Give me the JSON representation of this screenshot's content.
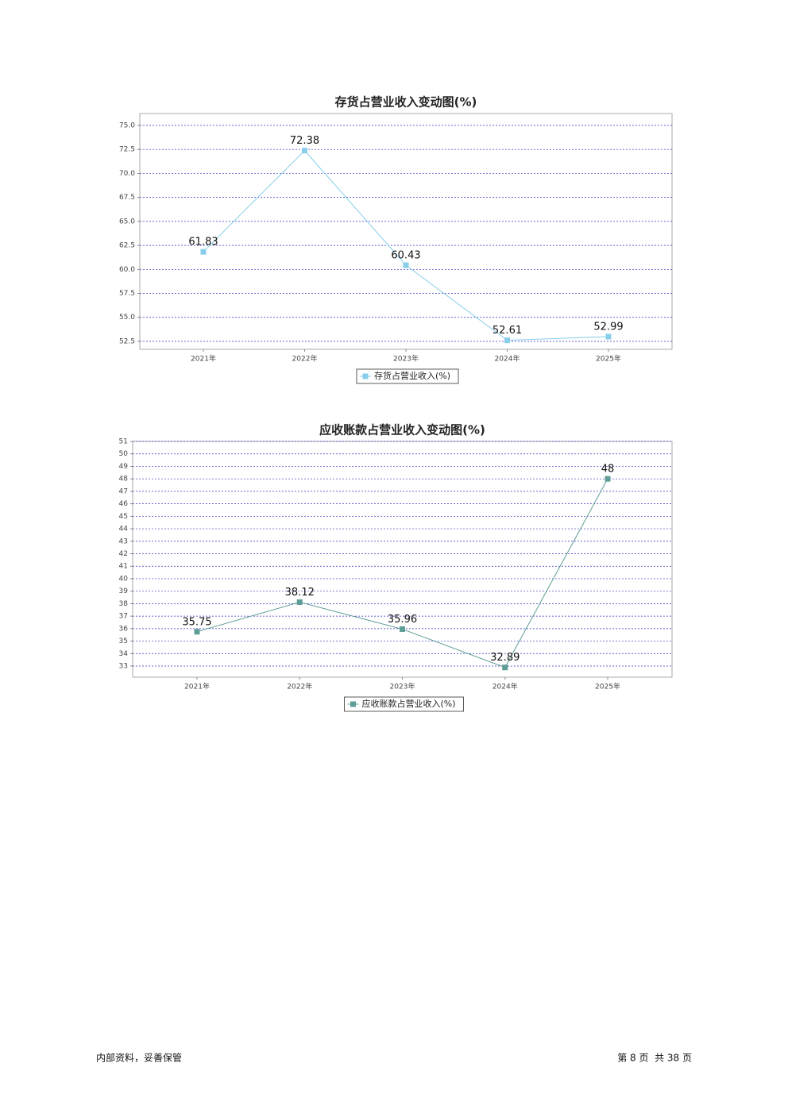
{
  "chart_data": [
    {
      "type": "line",
      "title": "存货占营业收入变动图(%)",
      "categories": [
        "2021年",
        "2022年",
        "2023年",
        "2024年",
        "2025年"
      ],
      "series": [
        {
          "name": "存货占营业收入(%)",
          "color": "#87ceeb",
          "values": [
            61.83,
            72.38,
            60.43,
            52.61,
            52.99
          ]
        }
      ],
      "ylim": [
        51.67,
        76.24
      ],
      "yticks": [
        {
          "value": 52.5,
          "label": "52.5"
        },
        {
          "value": 55,
          "label": "55.0"
        },
        {
          "value": 57.5,
          "label": "57.5"
        },
        {
          "value": 60,
          "label": "60.0"
        },
        {
          "value": 62.5,
          "label": "62.5"
        },
        {
          "value": 65,
          "label": "65.0"
        },
        {
          "value": 67.5,
          "label": "67.5"
        },
        {
          "value": 70,
          "label": "70.0"
        },
        {
          "value": 72.5,
          "label": "72.5"
        },
        {
          "value": 75,
          "label": "75.0"
        }
      ],
      "grid": true
    },
    {
      "type": "line",
      "title": "应收账款占营业收入变动图(%)",
      "categories": [
        "2021年",
        "2022年",
        "2023年",
        "2024年",
        "2025年"
      ],
      "series": [
        {
          "name": "应收账款占营业收入(%)",
          "color": "#5f9e96",
          "values": [
            35.75,
            38.12,
            35.96,
            32.89,
            48
          ]
        }
      ],
      "ylim": [
        32.11,
        51
      ],
      "yticks": [
        33,
        34,
        35,
        36,
        37,
        38,
        39,
        40,
        41,
        42,
        43,
        44,
        45,
        46,
        47,
        48,
        49,
        50,
        51
      ],
      "grid": true
    }
  ],
  "footer": {
    "left": "内部资料，妥善保管",
    "right": "第 8 页  共 38 页"
  }
}
